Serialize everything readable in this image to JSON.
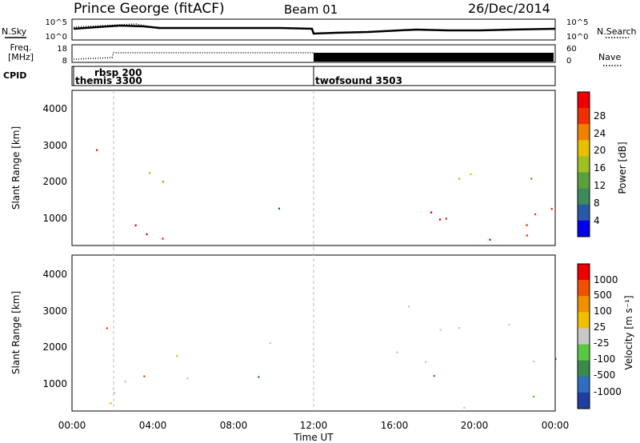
{
  "header": {
    "station": "Prince George (fitACF)",
    "beam": "Beam 01",
    "date": "26/Dec/2014"
  },
  "top_panels": {
    "nsky_label": "N.Sky",
    "nsearch_label": "N.Search",
    "freq_label_1": "Freq.",
    "freq_label_2": "[MHz]",
    "nave_label": "Nave",
    "cpid_label": "CPID",
    "noise_left_ticks": [
      "10^5",
      "10^0"
    ],
    "noise_right_ticks": [
      "10^5",
      "10^0"
    ],
    "freq_ticks": [
      "18",
      "8"
    ],
    "nave_ticks": [
      "60",
      "0"
    ]
  },
  "cpid_segments": [
    {
      "name": "themis 3300",
      "start_hour": 0.0
    },
    {
      "name": "rbsp 200",
      "start_hour": 0.3
    },
    {
      "name": "twofsound 3503",
      "start_hour": 12.0
    }
  ],
  "colorbars": {
    "power": {
      "label": "Power [dB]",
      "ticks": [
        "28",
        "24",
        "20",
        "16",
        "12",
        "8",
        "4"
      ],
      "colors": [
        "#0000ee",
        "#2a58a8",
        "#3f8a5a",
        "#5aa03c",
        "#a0c020",
        "#e8c000",
        "#f08000",
        "#f03000",
        "#ee0000"
      ]
    },
    "velocity": {
      "label": "Velocity [m s⁻¹]",
      "ticks": [
        "1000",
        "500",
        "100",
        "25",
        "-25",
        "-100",
        "-500",
        "-1000"
      ],
      "colors": [
        "#1e3fa0",
        "#2e6ec0",
        "#3a8a4a",
        "#58c840",
        "#c8c8c8",
        "#f0c000",
        "#f09000",
        "#f05000",
        "#ee0000"
      ]
    }
  },
  "xaxis": {
    "label": "Time UT",
    "ticks": [
      "00:00",
      "04:00",
      "08:00",
      "12:00",
      "16:00",
      "20:00",
      "00:00"
    ]
  },
  "yaxis": {
    "label": "Slant Range [km]",
    "ticks": [
      "1000",
      "2000",
      "3000",
      "4000"
    ]
  },
  "chart_data": {
    "type": "heatmap",
    "title": "Prince George (fitACF)  Beam 01  26/Dec/2014",
    "xlabel": "Time UT",
    "ylabel": "Slant Range [km]",
    "xlim_hours": [
      0,
      24
    ],
    "ylim_km": [
      180,
      4600
    ],
    "panels": [
      {
        "name": "Power [dB]",
        "zlim": [
          0,
          30
        ],
        "regions": [
          {
            "t": [
              0.5,
              4.5
            ],
            "r": [
              300,
              3500
            ],
            "level": "high"
          },
          {
            "t": [
              4.0,
              6.0
            ],
            "r": [
              300,
              1500
            ],
            "level": "mixed"
          },
          {
            "t": [
              8.5,
              10.5
            ],
            "r": [
              800,
              1400
            ],
            "level": "mixed"
          },
          {
            "t": [
              16.0,
              24.0
            ],
            "r": [
              300,
              3500
            ],
            "level": "high"
          }
        ]
      },
      {
        "name": "Velocity [m s-1]",
        "zlim": [
          -1000,
          1000
        ],
        "regions": [
          {
            "t": [
              0.5,
              6.0
            ],
            "r": [
              300,
              3500
            ],
            "level": "mixed"
          },
          {
            "t": [
              8.5,
              11.0
            ],
            "r": [
              600,
              2400
            ],
            "level": "near-zero"
          },
          {
            "t": [
              16.0,
              24.0
            ],
            "r": [
              300,
              3500
            ],
            "level": "near-zero"
          }
        ]
      }
    ]
  }
}
